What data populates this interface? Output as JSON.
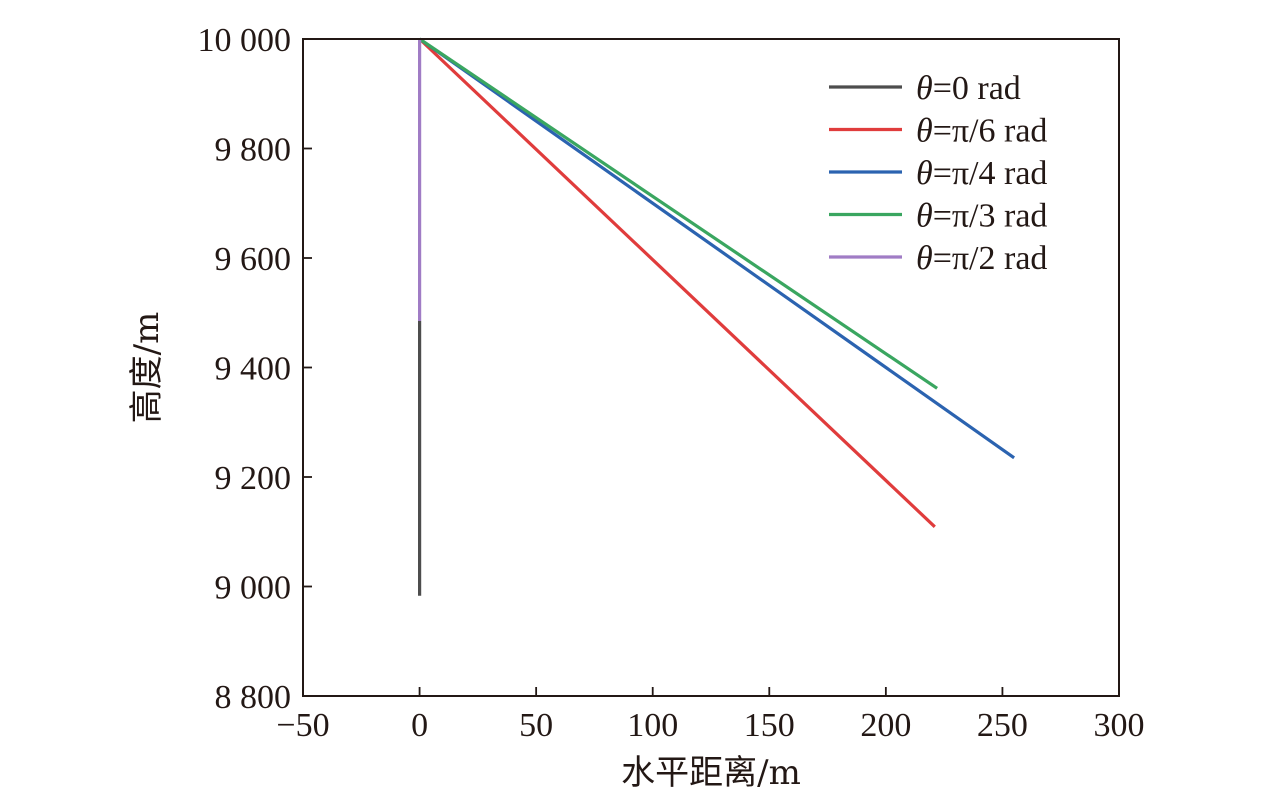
{
  "chart_data": {
    "type": "line",
    "title": "",
    "xlabel": "水平距离/m",
    "ylabel": "高度/m",
    "xlim": [
      -50,
      300
    ],
    "ylim": [
      8800,
      10000
    ],
    "x_ticks": [
      -50,
      0,
      50,
      100,
      150,
      200,
      250,
      300
    ],
    "x_tick_labels": [
      "−50",
      "0",
      "50",
      "100",
      "150",
      "200",
      "250",
      "300"
    ],
    "y_ticks": [
      8800,
      9000,
      9200,
      9400,
      9600,
      9800,
      10000
    ],
    "y_tick_labels": [
      "8 800",
      "9 000",
      "9 200",
      "9 400",
      "9 600",
      "9 800",
      "10 000"
    ],
    "grid": false,
    "legend_position": "top-right",
    "series": [
      {
        "name": "θ=0 rad",
        "theta": "θ",
        "suffix": "=0 rad",
        "color": "#4d4d4d",
        "points": [
          [
            0,
            9485
          ],
          [
            0,
            8983
          ]
        ]
      },
      {
        "name": "θ=π/6 rad",
        "theta": "θ",
        "suffix": "=π/6 rad",
        "color": "#e03c3c",
        "points": [
          [
            0,
            10000
          ],
          [
            221,
            9109
          ]
        ]
      },
      {
        "name": "θ=π/4 rad",
        "theta": "θ",
        "suffix": "=π/4 rad",
        "color": "#2b63b0",
        "points": [
          [
            0,
            10000
          ],
          [
            255,
            9235
          ]
        ]
      },
      {
        "name": "θ=π/3 rad",
        "theta": "θ",
        "suffix": "=π/3 rad",
        "color": "#3aa660",
        "points": [
          [
            0,
            10000
          ],
          [
            222,
            9362
          ]
        ]
      },
      {
        "name": "θ=π/2 rad",
        "theta": "θ",
        "suffix": "=π/2 rad",
        "color": "#a07cc5",
        "points": [
          [
            0,
            10000
          ],
          [
            0,
            9485
          ]
        ]
      }
    ]
  }
}
